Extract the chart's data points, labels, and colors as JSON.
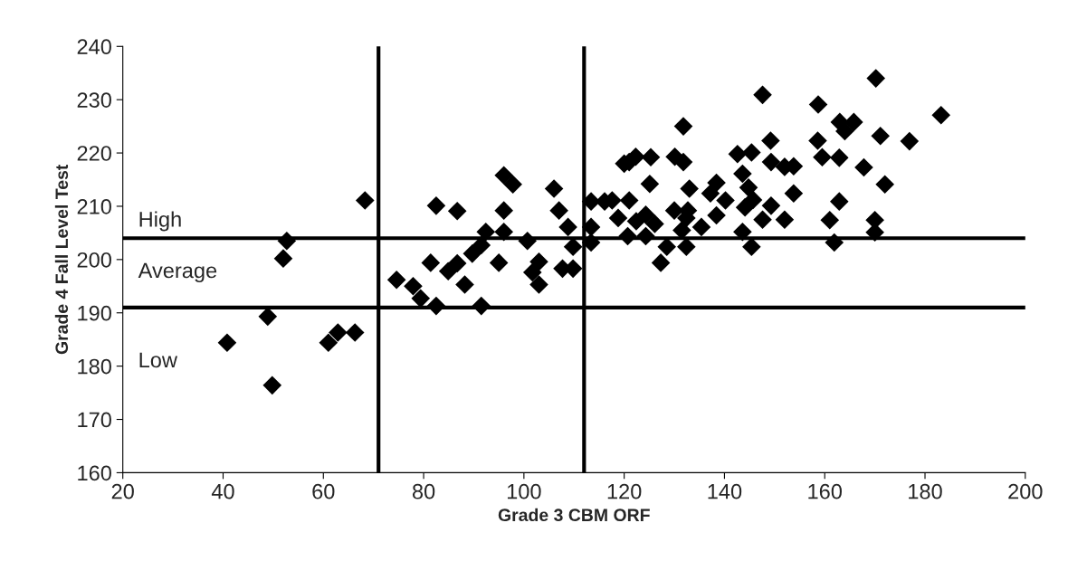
{
  "chart_data": {
    "type": "scatter",
    "xlabel": "Grade 3 CBM ORF",
    "ylabel": "Grade 4 Fall Level Test",
    "xlim": [
      20,
      200
    ],
    "xticks": [
      20,
      40,
      60,
      80,
      100,
      120,
      140,
      160,
      180,
      200
    ],
    "ylim": [
      160,
      240
    ],
    "yticks": [
      160,
      170,
      180,
      190,
      200,
      210,
      220,
      230,
      240
    ],
    "grid": false,
    "marker": "diamond",
    "series": [
      {
        "color": "#000000",
        "x": [
          40.8,
          48.9,
          49.8,
          52.0,
          52.7,
          61.0,
          62.9,
          66.3,
          68.3,
          74.6,
          77.9,
          79.4,
          82.5,
          82.5,
          86.7,
          81.4,
          84.9,
          86.7,
          88.2,
          89.7,
          91.5,
          92.4,
          91.5,
          96.0,
          97.8,
          96.0,
          96.0,
          95.0,
          100.7,
          101.7,
          103.0,
          103.0,
          106.0,
          107.0,
          108.8,
          109.8,
          107.7,
          109.8,
          113.4,
          116.1,
          113.4,
          113.4,
          120.0,
          147.6,
          131.8,
          149.2,
          158.6,
          159.5,
          121.0,
          122.3,
          125.3,
          130.1,
          131.8,
          142.6,
          145.4,
          143.6,
          149.3,
          152.0,
          153.8,
          153.8,
          125.1,
          133.0,
          138.4,
          137.2,
          140.2,
          144.8,
          145.7,
          144.1,
          149.3,
          147.6,
          152.0,
          121.0,
          117.6,
          118.8,
          124.3,
          122.4,
          126.1,
          130.0,
          132.7,
          132.4,
          131.5,
          135.4,
          138.4,
          128.5,
          132.4,
          127.3,
          143.6,
          145.4,
          124.3,
          120.7,
          170.2,
          158.7,
          183.2,
          163.0,
          165.8,
          164.0,
          171.1,
          176.9,
          162.9,
          167.8,
          172.0,
          162.9,
          161.0,
          170.0,
          170.0,
          161.9
        ],
        "values": [
          184.4,
          189.3,
          176.4,
          200.2,
          203.5,
          184.4,
          186.3,
          186.3,
          211.1,
          196.2,
          195.0,
          192.7,
          191.3,
          210.1,
          209.1,
          199.4,
          197.8,
          199.3,
          195.3,
          201.1,
          202.7,
          205.2,
          191.3,
          215.8,
          214.1,
          209.2,
          205.2,
          199.4,
          203.5,
          197.6,
          199.6,
          195.3,
          213.3,
          209.2,
          206.1,
          202.4,
          198.3,
          198.3,
          210.9,
          210.9,
          206.1,
          203.2,
          218.0,
          230.9,
          225.0,
          222.3,
          222.3,
          219.2,
          218.3,
          219.3,
          219.2,
          219.3,
          218.3,
          219.8,
          220.1,
          216.1,
          218.3,
          217.4,
          217.5,
          212.4,
          214.2,
          213.3,
          214.4,
          212.4,
          211.1,
          213.5,
          211.2,
          209.8,
          210.1,
          207.5,
          207.5,
          211.1,
          211.1,
          207.8,
          208.4,
          207.2,
          206.7,
          209.2,
          209.2,
          207.8,
          205.5,
          206.1,
          208.3,
          202.4,
          202.4,
          199.4,
          205.2,
          202.4,
          204.4,
          204.4,
          234.0,
          229.1,
          227.1,
          225.8,
          225.8,
          224.1,
          223.2,
          222.2,
          219.1,
          217.3,
          214.1,
          210.9,
          207.4,
          207.4,
          205.1,
          203.2
        ]
      }
    ],
    "ref_lines": [
      {
        "axis": "y",
        "value": 204,
        "color": "#000000",
        "line_style": "solid"
      },
      {
        "axis": "y",
        "value": 191,
        "color": "#000000",
        "line_style": "solid"
      },
      {
        "axis": "x",
        "value": 71,
        "color": "#000000",
        "line_style": "solid"
      },
      {
        "axis": "x",
        "value": 112,
        "color": "#000000",
        "line_style": "solid"
      }
    ],
    "annotations": [
      "High",
      "Average",
      "Low"
    ]
  }
}
